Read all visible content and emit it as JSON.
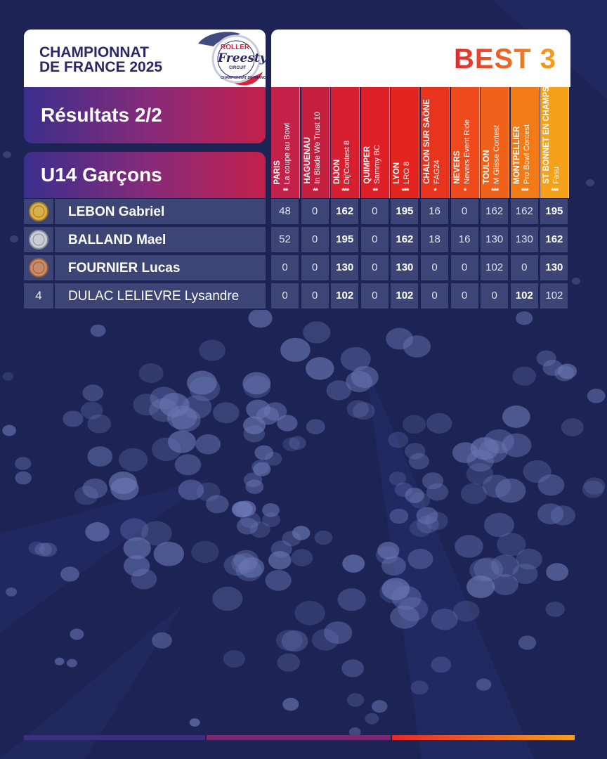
{
  "header": {
    "title_line1": "CHAMPIONNAT",
    "title_line2": "DE FRANCE 2025",
    "logo": {
      "top": "ROLLER",
      "main": "Freestyle",
      "sub": "CIRCUIT",
      "ring": "CHAMPIONNAT DE FRANCE"
    },
    "best": "BEST 3"
  },
  "section": {
    "results": "Résultats 2/2",
    "category": "U14 Garçons"
  },
  "colors": {
    "columns": [
      "#c3204a",
      "#c41f3f",
      "#d81f2f",
      "#df1f28",
      "#e4241f",
      "#e8331d",
      "#ee4a1c",
      "#f0621a",
      "#f27b18",
      "#f5a11a"
    ]
  },
  "events": [
    {
      "city": "PARIS",
      "event": "La coupe au Bowl",
      "stars": "**"
    },
    {
      "city": "HAGUENAU",
      "event": "In Blade We Trust 10",
      "stars": "**"
    },
    {
      "city": "DIJON",
      "event": "Dij'Contest 8",
      "stars": "***"
    },
    {
      "city": "QUIMPER",
      "event": "Sammy BC",
      "stars": "**"
    },
    {
      "city": "LYON",
      "event": "LRO 8",
      "stars": "***"
    },
    {
      "city": "CHALON SUR SAÔNE",
      "event": "FAG24",
      "stars": "*"
    },
    {
      "city": "NEVERS",
      "event": "Nevers Event Ride",
      "stars": "*"
    },
    {
      "city": "TOULON",
      "event": "M Glisse Contest",
      "stars": "***"
    },
    {
      "city": "MONTPELLIER",
      "event": "Pro Bowl Contest",
      "stars": "***"
    },
    {
      "city": "ST BONNET EN CHAMPSAUR",
      "event": "Fasu",
      "stars": "***"
    }
  ],
  "athletes": [
    {
      "rank": "1",
      "medal": "gold",
      "name": "LEBON Gabriel",
      "scores": [
        "48",
        "0",
        "162",
        "0",
        "195",
        "16",
        "0",
        "162",
        "162",
        "195"
      ],
      "bold": [
        false,
        false,
        true,
        false,
        true,
        false,
        false,
        false,
        false,
        true
      ]
    },
    {
      "rank": "2",
      "medal": "silver",
      "name": "BALLAND Mael",
      "scores": [
        "52",
        "0",
        "195",
        "0",
        "162",
        "18",
        "16",
        "130",
        "130",
        "162"
      ],
      "bold": [
        false,
        false,
        true,
        false,
        true,
        false,
        false,
        false,
        false,
        true
      ]
    },
    {
      "rank": "3",
      "medal": "bronze",
      "name": "FOURNIER Lucas",
      "scores": [
        "0",
        "0",
        "130",
        "0",
        "130",
        "0",
        "0",
        "102",
        "0",
        "130"
      ],
      "bold": [
        false,
        false,
        true,
        false,
        true,
        false,
        false,
        false,
        false,
        true
      ]
    },
    {
      "rank": "4",
      "medal": "",
      "name": "DULAC LELIEVRE Lysandre",
      "scores": [
        "0",
        "0",
        "102",
        "0",
        "102",
        "0",
        "0",
        "0",
        "102",
        "102"
      ],
      "bold": [
        false,
        false,
        true,
        false,
        true,
        false,
        false,
        false,
        true,
        false
      ]
    }
  ]
}
